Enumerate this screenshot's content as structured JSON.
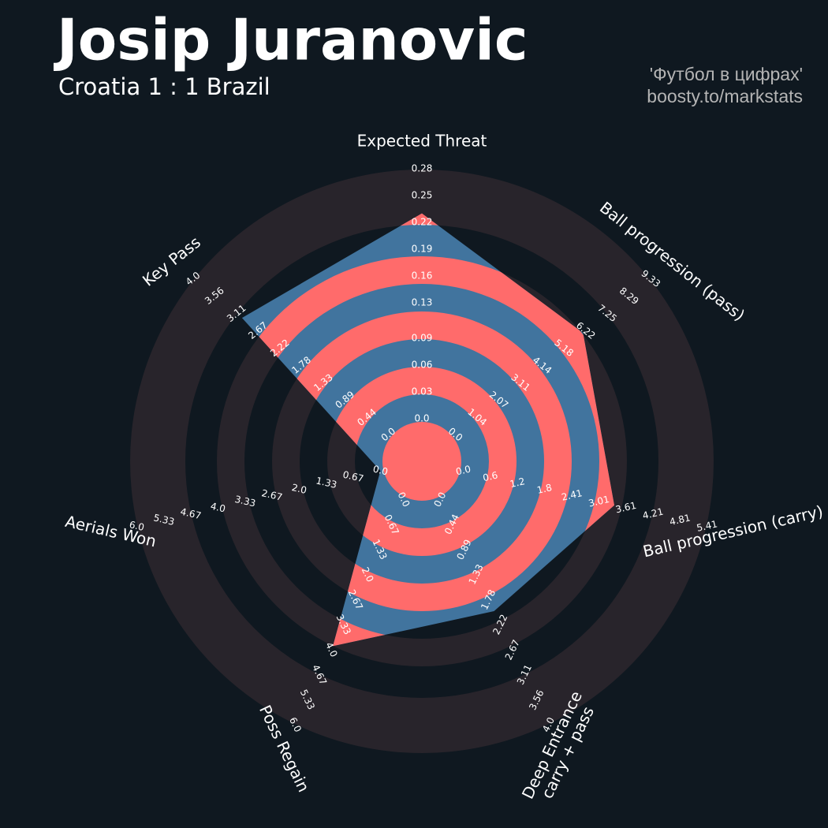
{
  "chart_data": {
    "type": "radar",
    "title": "Josip Juranovic",
    "subtitle": "Croatia 1 : 1 Brazil",
    "credits": [
      "'Футбол в цифрах'",
      "boosty.to/markstats"
    ],
    "color": "#41749e",
    "ring_color": "#ff6b6b",
    "categories": [
      "Expected Threat",
      "Ball progression (pass)",
      "Ball progression (carry)",
      "Deep Entrance\ncarry + pass",
      "Poss Regain",
      "Aerials Won",
      "Key Pass"
    ],
    "values": [
      0.23,
      6.1,
      3.35,
      1.98,
      3.9,
      0,
      3.0
    ],
    "lims": [
      [
        0,
        0.28
      ],
      [
        0,
        9.33
      ],
      [
        0,
        5.41
      ],
      [
        0,
        4
      ],
      [
        0,
        6
      ],
      [
        0,
        6
      ],
      [
        0,
        4
      ]
    ],
    "ticks": [
      [
        {
          "value": 0,
          "label": "0.0"
        },
        0.03,
        0.06,
        0.09,
        0.13,
        0.16,
        0.19,
        0.22,
        0.25,
        0.28
      ],
      [
        {
          "value": 0,
          "label": "0.0"
        },
        1.04,
        2.07,
        3.11,
        4.14,
        5.18,
        6.22,
        7.25,
        8.29,
        9.33
      ],
      [
        {
          "value": 0,
          "label": "0.0"
        },
        0.6,
        1.2,
        1.8,
        2.41,
        3.01,
        3.61,
        4.21,
        4.81,
        5.41
      ],
      [
        {
          "value": 0,
          "label": "0.0"
        },
        0.44,
        0.89,
        1.33,
        1.78,
        2.22,
        2.67,
        3.11,
        3.56,
        {
          "value": 4,
          "label": "4.0"
        }
      ],
      [
        {
          "value": 0,
          "label": "0.0"
        },
        0.67,
        1.33,
        {
          "value": 2,
          "label": "2.0"
        },
        2.67,
        3.33,
        {
          "value": 4,
          "label": "4.0"
        },
        4.67,
        5.33,
        {
          "value": 6,
          "label": "6.0"
        }
      ],
      [
        {
          "value": 0,
          "label": "0.0"
        },
        0.67,
        1.33,
        {
          "value": 2,
          "label": "2.0"
        },
        2.67,
        3.33,
        {
          "value": 4,
          "label": "4.0"
        },
        4.67,
        5.33,
        {
          "value": 6,
          "label": "6.0"
        }
      ],
      [
        {
          "value": 0,
          "label": "0.0"
        },
        0.44,
        0.89,
        1.33,
        1.78,
        2.22,
        2.67,
        3.11,
        3.56,
        {
          "value": 4,
          "label": "4.0"
        }
      ]
    ]
  }
}
